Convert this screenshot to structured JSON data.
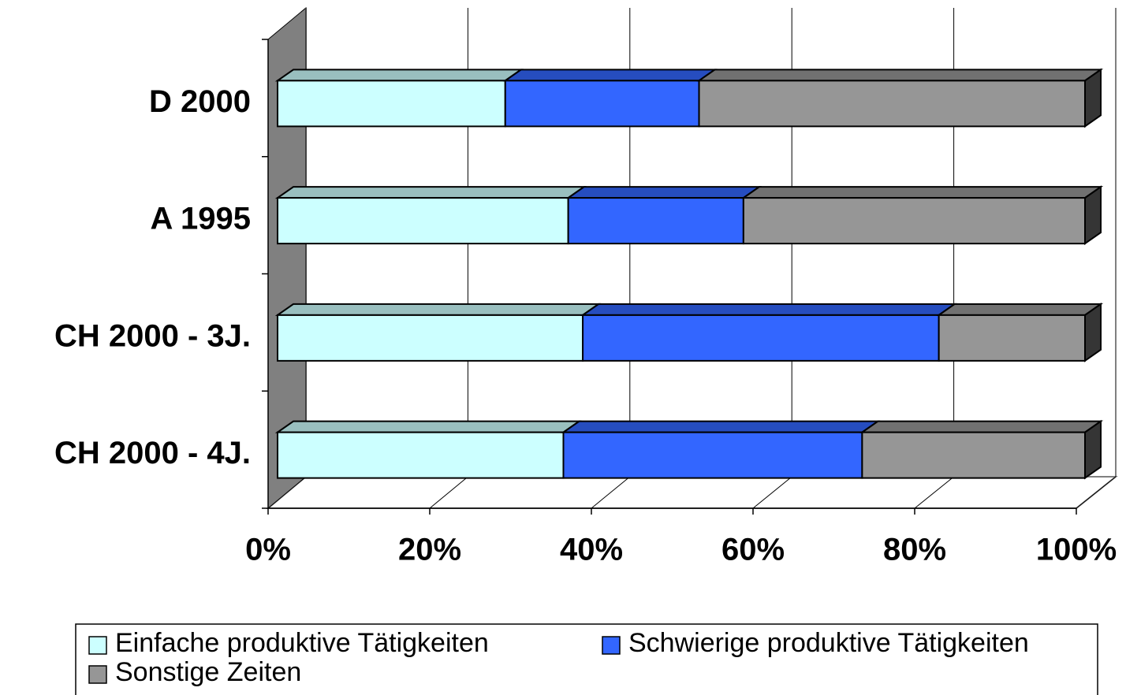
{
  "chart_data": {
    "type": "bar3d_stacked_horizontal",
    "categories": [
      "D 2000",
      "A 1995",
      "CH 2000 - 3J.",
      "CH 2000 - 4J."
    ],
    "series": [
      {
        "name": "Einfache produktive Tätigkeiten",
        "color": "#ccffff",
        "values": [
          28.2,
          36.0,
          37.8,
          35.4
        ]
      },
      {
        "name": "Schwierige produktive Tätigkeiten",
        "color": "#3366ff",
        "values": [
          24.0,
          21.7,
          44.1,
          37.0
        ]
      },
      {
        "name": "Sonstige Zeiten",
        "color": "#969696",
        "values": [
          47.8,
          42.3,
          18.1,
          27.6
        ]
      }
    ],
    "xlim": [
      0,
      100
    ],
    "xticks": [
      {
        "value": 0,
        "label": "0%"
      },
      {
        "value": 20,
        "label": "20%"
      },
      {
        "value": 40,
        "label": "40%"
      },
      {
        "value": 60,
        "label": "60%"
      },
      {
        "value": 80,
        "label": "80%"
      },
      {
        "value": 100,
        "label": "100%"
      }
    ],
    "grid": true,
    "legend": "bottom"
  }
}
